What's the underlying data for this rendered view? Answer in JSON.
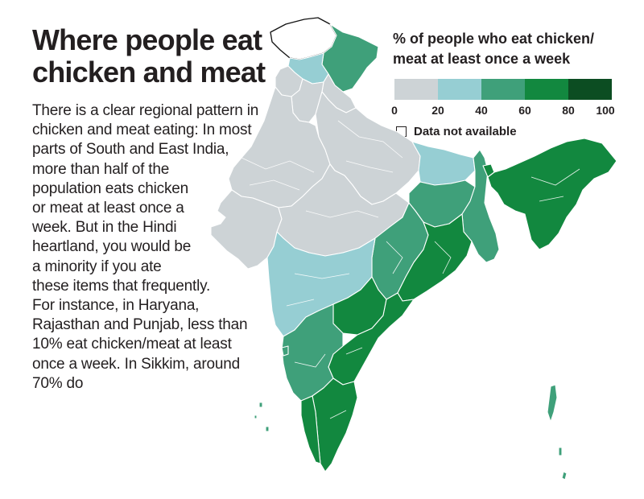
{
  "title": {
    "line1": "Where people eat",
    "line2": "chicken and meat"
  },
  "description": {
    "lines": [
      "There is a clear regional pattern in",
      "chicken and meat eating: In most",
      "parts of South and East India,",
      "more than half of the",
      "population eats chicken",
      "or meat at least once a",
      "week. But in the Hindi",
      "heartland, you would be",
      "a minority if you ate",
      "these items that frequently.",
      "For instance, in Haryana,",
      "Rajasthan and Punjab, less than",
      "10% eat chicken/meat at least",
      "once a week. In Sikkim, around",
      "70% do"
    ]
  },
  "legend": {
    "title_line1": "% of people who eat chicken/",
    "title_line2": "meat at least once a week",
    "ticks": [
      "0",
      "20",
      "40",
      "60",
      "80",
      "100"
    ],
    "bins": [
      {
        "range": "0-20",
        "color": "#cdd3d6"
      },
      {
        "range": "20-40",
        "color": "#96ced3"
      },
      {
        "range": "40-60",
        "color": "#3fa07a"
      },
      {
        "range": "60-80",
        "color": "#12883f"
      },
      {
        "range": "80-100",
        "color": "#0c4d22"
      }
    ],
    "na_label": "Data not available",
    "na_color": "#ffffff"
  },
  "map": {
    "region": "India",
    "boundary_color": "#ffffff",
    "outline_color": "#111111",
    "areas": [
      {
        "name": "Jammu and Kashmir",
        "bin": "no-data"
      },
      {
        "name": "Ladakh",
        "bin": "40-60"
      },
      {
        "name": "Himachal Pradesh",
        "bin": "20-40"
      },
      {
        "name": "Punjab",
        "bin": "0-20"
      },
      {
        "name": "Haryana",
        "bin": "0-20"
      },
      {
        "name": "Uttarakhand",
        "bin": "0-20"
      },
      {
        "name": "Rajasthan",
        "bin": "0-20"
      },
      {
        "name": "Gujarat",
        "bin": "0-20"
      },
      {
        "name": "Uttar Pradesh",
        "bin": "0-20"
      },
      {
        "name": "Madhya Pradesh",
        "bin": "0-20"
      },
      {
        "name": "Bihar",
        "bin": "20-40"
      },
      {
        "name": "Jharkhand",
        "bin": "40-60"
      },
      {
        "name": "West Bengal",
        "bin": "40-60"
      },
      {
        "name": "Sikkim",
        "bin": "60-80"
      },
      {
        "name": "Northeast",
        "bin": "60-80"
      },
      {
        "name": "Chhattisgarh",
        "bin": "40-60"
      },
      {
        "name": "Odisha",
        "bin": "60-80"
      },
      {
        "name": "Maharashtra",
        "bin": "20-40"
      },
      {
        "name": "Telangana",
        "bin": "60-80"
      },
      {
        "name": "Andhra Pradesh",
        "bin": "60-80"
      },
      {
        "name": "Karnataka",
        "bin": "40-60"
      },
      {
        "name": "Goa",
        "bin": "40-60"
      },
      {
        "name": "Tamil Nadu",
        "bin": "60-80"
      },
      {
        "name": "Kerala",
        "bin": "60-80"
      },
      {
        "name": "Andaman and Nicobar",
        "bin": "40-60"
      },
      {
        "name": "Lakshadweep",
        "bin": "40-60"
      }
    ]
  }
}
